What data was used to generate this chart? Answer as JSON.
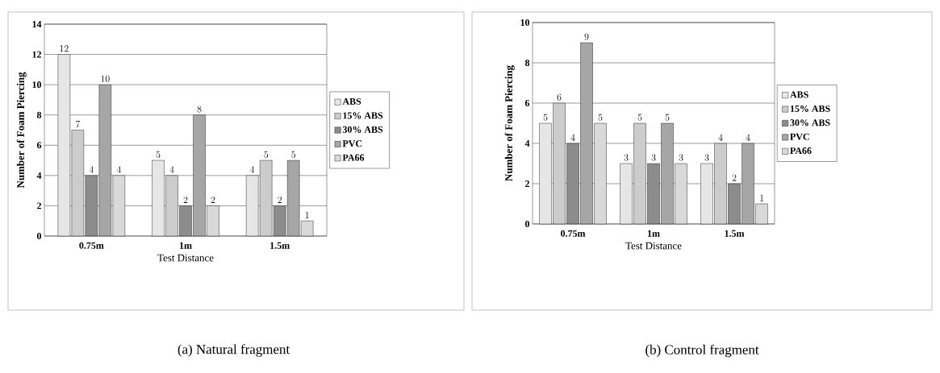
{
  "chart_data": [
    {
      "type": "bar",
      "ylabel": "Number of Foam Piercing",
      "xlabel": "Test Distance",
      "categories": [
        "0.75m",
        "1m",
        "1.5m"
      ],
      "series": [
        {
          "name": "ABS",
          "color": "#e6e6e6",
          "values": [
            12,
            5,
            4
          ]
        },
        {
          "name": "15% ABS",
          "color": "#cccccc",
          "values": [
            7,
            4,
            5
          ]
        },
        {
          "name": "30% ABS",
          "color": "#8c8c8c",
          "values": [
            4,
            2,
            2
          ]
        },
        {
          "name": "PVC",
          "color": "#a6a6a6",
          "values": [
            10,
            8,
            5
          ]
        },
        {
          "name": "PA66",
          "color": "#d9d9d9",
          "values": [
            4,
            2,
            1
          ]
        }
      ],
      "ylim": [
        0,
        14
      ],
      "yticks": [
        0,
        2,
        4,
        6,
        8,
        10,
        12,
        14
      ],
      "grid": "y",
      "legend": "right",
      "data_labels": true,
      "annotations": [
        "(a) Natural fragment"
      ]
    },
    {
      "type": "bar",
      "ylabel": "Number of Foam Piercing",
      "xlabel": "Test Distance",
      "categories": [
        "0.75m",
        "1m",
        "1.5m"
      ],
      "series": [
        {
          "name": "ABS",
          "color": "#e6e6e6",
          "values": [
            5,
            3,
            3
          ]
        },
        {
          "name": "15% ABS",
          "color": "#cccccc",
          "values": [
            6,
            5,
            4
          ]
        },
        {
          "name": "30% ABS",
          "color": "#8c8c8c",
          "values": [
            4,
            3,
            2
          ]
        },
        {
          "name": "PVC",
          "color": "#a6a6a6",
          "values": [
            9,
            5,
            4
          ]
        },
        {
          "name": "PA66",
          "color": "#d9d9d9",
          "values": [
            5,
            3,
            1
          ]
        }
      ],
      "ylim": [
        0,
        10
      ],
      "yticks": [
        0,
        2,
        4,
        6,
        8,
        10
      ],
      "grid": "y",
      "legend": "right",
      "data_labels": true,
      "annotations": [
        "(b) Control fragment"
      ]
    }
  ]
}
